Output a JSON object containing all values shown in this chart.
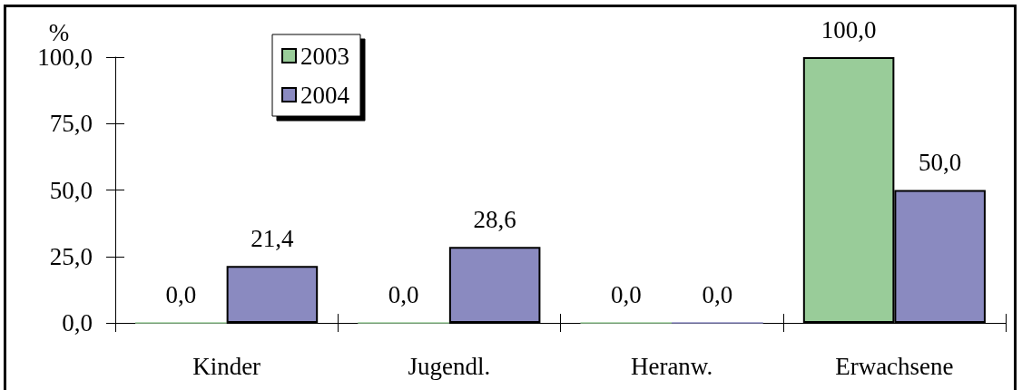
{
  "chart_data": {
    "type": "bar",
    "ylabel": "%",
    "categories": [
      "Kinder",
      "Jugendl.",
      "Heranw.",
      "Erwachsene"
    ],
    "series": [
      {
        "name": "2003",
        "color": "#99cc99",
        "values": [
          0,
          0,
          0,
          100
        ],
        "value_labels": [
          "0,0",
          "0,0",
          "0,0",
          "100,0"
        ]
      },
      {
        "name": "2004",
        "color": "#8a8ac0",
        "values": [
          21.4,
          28.6,
          0,
          50
        ],
        "value_labels": [
          "21,4",
          "28,6",
          "0,0",
          "50,0"
        ]
      }
    ],
    "ylim": [
      0,
      100
    ],
    "yticks": [
      {
        "value": 0,
        "label": "0,0"
      },
      {
        "value": 25,
        "label": "25,0"
      },
      {
        "value": 50,
        "label": "50,0"
      },
      {
        "value": 75,
        "label": "75,0"
      },
      {
        "value": 100,
        "label": "100,0"
      }
    ],
    "grid": false,
    "legend": "top left"
  }
}
